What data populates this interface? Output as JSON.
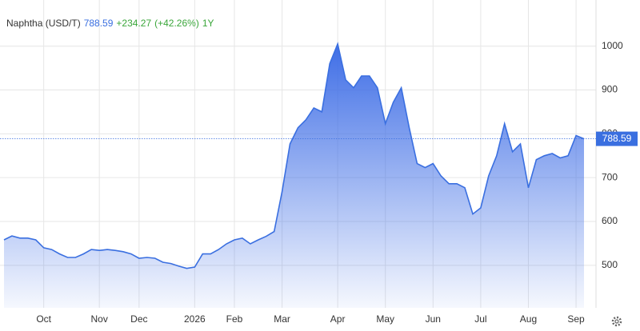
{
  "chart_data": {
    "type": "area",
    "title": "Naphtha (USD/T)",
    "change": "+234.27",
    "change_percent": "(+42.26%)",
    "period": "1Y",
    "categories": [
      null,
      null,
      null,
      null,
      null,
      "Oct",
      null,
      null,
      null,
      null,
      null,
      null,
      "Nov",
      null,
      null,
      null,
      null,
      "Dec",
      null,
      null,
      null,
      null,
      null,
      null,
      "2026",
      null,
      null,
      null,
      null,
      "Feb",
      null,
      null,
      null,
      null,
      null,
      "Mar",
      null,
      null,
      null,
      null,
      null,
      null,
      "Apr",
      null,
      null,
      null,
      null,
      null,
      "May",
      null,
      null,
      null,
      null,
      null,
      "Jun",
      null,
      null,
      null,
      null,
      null,
      "Jul",
      null,
      null,
      null,
      null,
      null,
      "Aug",
      null,
      null,
      null,
      null,
      null,
      "Sep",
      null
    ],
    "series": [
      {
        "name": "Naphtha",
        "color": "#3a6fe0",
        "values": [
          558,
          567,
          562,
          562,
          558,
          540,
          536,
          526,
          518,
          518,
          526,
          536,
          534,
          536,
          534,
          531,
          526,
          516,
          518,
          516,
          507,
          504,
          498,
          493,
          496,
          526,
          526,
          536,
          549,
          558,
          562,
          549,
          558,
          566,
          577,
          668,
          777,
          814,
          832,
          859,
          850,
          960,
          1005,
          923,
          905,
          932,
          932,
          905,
          823,
          872,
          905,
          814,
          732,
          723,
          732,
          704,
          686,
          686,
          677,
          617,
          631,
          704,
          750,
          823,
          759,
          777,
          677,
          741,
          750,
          755,
          745,
          750,
          796,
          788.59
        ]
      }
    ],
    "ylim": [
      403,
      1087
    ],
    "yticks": [
      500,
      600,
      700,
      800,
      900,
      1000
    ],
    "grid": true
  }
}
